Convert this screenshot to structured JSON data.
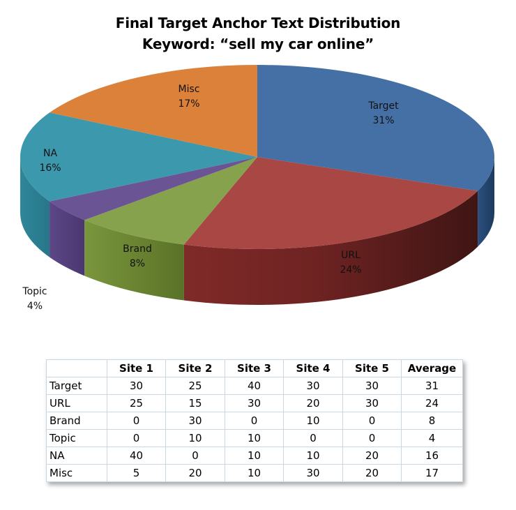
{
  "chart_data": {
    "type": "pie",
    "title": "Final Target Anchor Text Distribution",
    "subtitle": "Keyword: “sell my car online”",
    "categories": [
      "Target",
      "URL",
      "Brand",
      "Topic",
      "NA",
      "Misc"
    ],
    "values": [
      31,
      24,
      8,
      4,
      16,
      17
    ],
    "value_labels": [
      "31%",
      "24%",
      "8%",
      "4%",
      "16%",
      "17%"
    ],
    "colors": [
      "#4470a5",
      "#a94744",
      "#86a24c",
      "#6a5494",
      "#3c98ad",
      "#dc8139"
    ],
    "style": "3d"
  },
  "table": {
    "headers": [
      "",
      "Site 1",
      "Site 2",
      "Site 3",
      "Site 4",
      "Site 5",
      "Average"
    ],
    "rows": [
      [
        "Target",
        "30",
        "25",
        "40",
        "30",
        "30",
        "31"
      ],
      [
        "URL",
        "25",
        "15",
        "30",
        "20",
        "30",
        "24"
      ],
      [
        "Brand",
        "0",
        "30",
        "0",
        "10",
        "0",
        "8"
      ],
      [
        "Topic",
        "0",
        "10",
        "10",
        "0",
        "0",
        "4"
      ],
      [
        "NA",
        "40",
        "0",
        "10",
        "10",
        "20",
        "16"
      ],
      [
        "Misc",
        "5",
        "20",
        "10",
        "30",
        "20",
        "17"
      ]
    ]
  }
}
